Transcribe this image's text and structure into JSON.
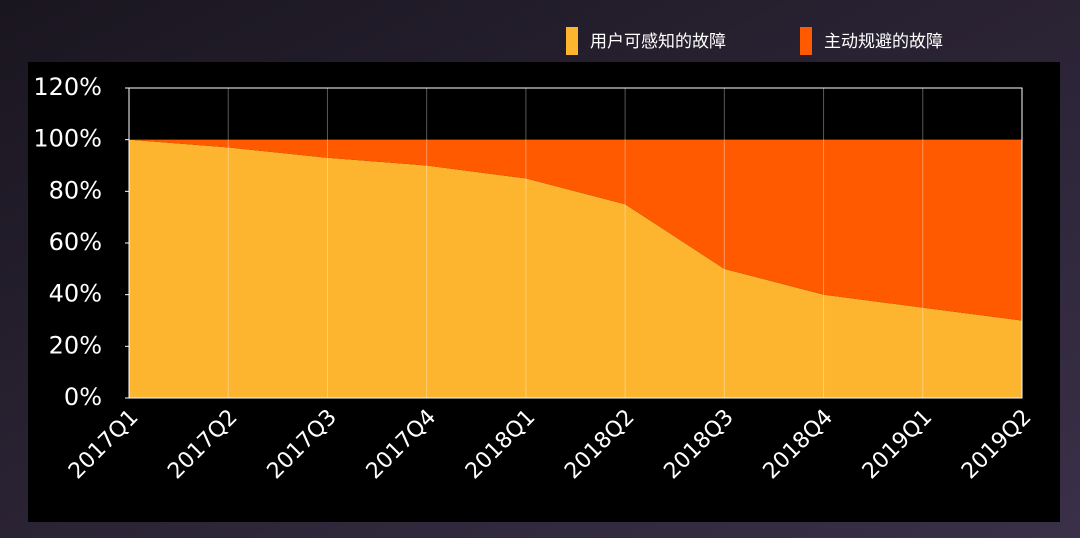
{
  "chart_data": {
    "type": "stacked-area",
    "categories": [
      "2017Q1",
      "2017Q2",
      "2017Q3",
      "2017Q4",
      "2018Q1",
      "2018Q2",
      "2018Q3",
      "2018Q4",
      "2019Q1",
      "2019Q2"
    ],
    "series": [
      {
        "name": "用户可感知的故障",
        "color": "#fdb42e",
        "values": [
          100,
          97,
          93,
          90,
          85,
          75,
          50,
          40,
          35,
          30
        ]
      },
      {
        "name": "主动规避的故障",
        "color": "#ff5a00",
        "values": [
          0,
          3,
          7,
          10,
          15,
          25,
          50,
          60,
          65,
          70
        ]
      }
    ],
    "ylim": [
      0,
      120
    ],
    "yticks": [
      {
        "value": 0,
        "label": "0%"
      },
      {
        "value": 20,
        "label": "20%"
      },
      {
        "value": 40,
        "label": "40%"
      },
      {
        "value": 60,
        "label": "60%"
      },
      {
        "value": 80,
        "label": "80%"
      },
      {
        "value": 100,
        "label": "100%"
      },
      {
        "value": 120,
        "label": "120%"
      }
    ],
    "grid": true,
    "legend": "top-right"
  }
}
